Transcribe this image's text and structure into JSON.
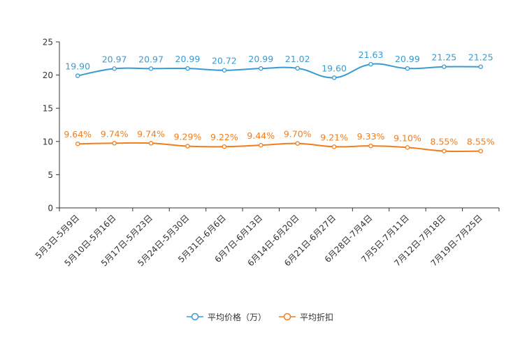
{
  "chart_data": {
    "type": "line",
    "categories": [
      "5月3日-5月9日",
      "5月10日-5月16日",
      "5月17日-5月23日",
      "5月24日-5月30日",
      "5月31日-6月6日",
      "6月7日-6月13日",
      "6月14日-6月20日",
      "6月21日-6月27日",
      "6月28日-7月4日",
      "7月5日-7月11日",
      "7月12日-7月18日",
      "7月19日-7月25日"
    ],
    "ylim": [
      0,
      25
    ],
    "yticks": [
      0,
      5,
      10,
      15,
      20,
      25
    ],
    "series": [
      {
        "name": "平均价格（万）",
        "color": "#3a9ad3",
        "values": [
          19.9,
          20.97,
          20.97,
          20.99,
          20.72,
          20.99,
          21.02,
          19.6,
          21.63,
          20.99,
          21.25,
          21.25
        ],
        "labels": [
          "19.90",
          "20.97",
          "20.97",
          "20.99",
          "20.72",
          "20.99",
          "21.02",
          "19.60",
          "21.63",
          "20.99",
          "21.25",
          "21.25"
        ]
      },
      {
        "name": "平均折扣",
        "color": "#f27d1c",
        "values": [
          9.64,
          9.74,
          9.74,
          9.29,
          9.22,
          9.44,
          9.7,
          9.21,
          9.33,
          9.1,
          8.55,
          8.55
        ],
        "labels": [
          "9.64%",
          "9.74%",
          "9.74%",
          "9.29%",
          "9.22%",
          "9.44%",
          "9.70%",
          "9.21%",
          "9.33%",
          "9.10%",
          "8.55%",
          "8.55%"
        ]
      }
    ],
    "title": "",
    "xlabel": "",
    "ylabel": "",
    "grid": false,
    "legend_position": "bottom-center"
  }
}
